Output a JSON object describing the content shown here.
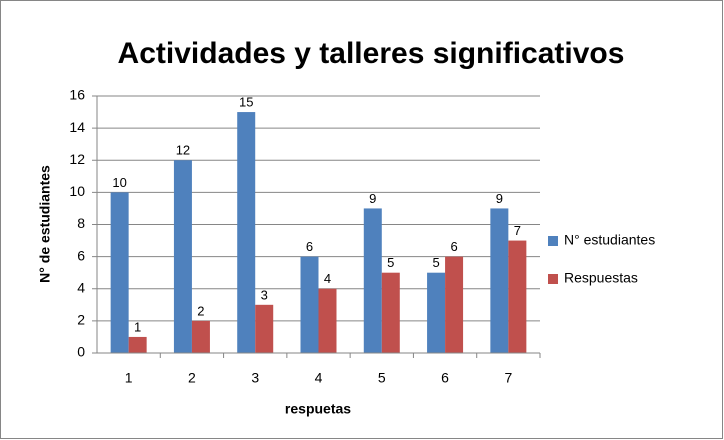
{
  "chart_data": {
    "type": "bar",
    "title": "Actividades y talleres significativos",
    "xlabel": "respuetas",
    "ylabel": "N° de estudiantes",
    "categories": [
      "1",
      "2",
      "3",
      "4",
      "5",
      "6",
      "7"
    ],
    "series": [
      {
        "name": "N° estudiantes",
        "color": "#4f81bd",
        "values": [
          10,
          12,
          15,
          6,
          9,
          5,
          9
        ]
      },
      {
        "name": "Respuestas",
        "color": "#c0504d",
        "values": [
          1,
          2,
          3,
          4,
          5,
          6,
          7
        ]
      }
    ],
    "ylim": [
      0,
      16
    ],
    "yticks": [
      0,
      2,
      4,
      6,
      8,
      10,
      12,
      14,
      16
    ],
    "grid": true,
    "legend": "right"
  }
}
